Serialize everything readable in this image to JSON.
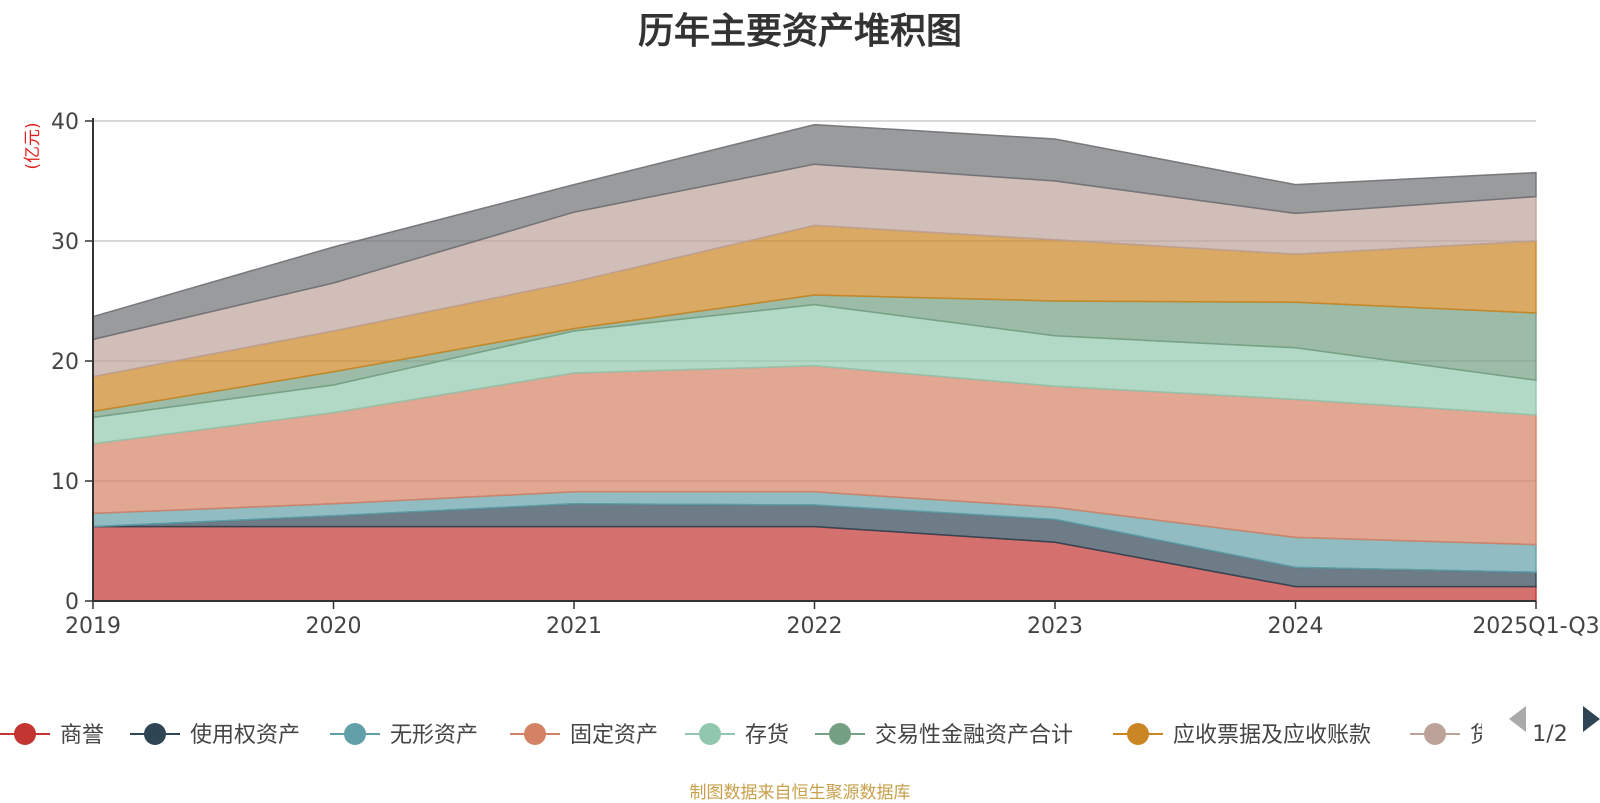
{
  "chart_data": {
    "type": "area",
    "stacked": true,
    "title": "历年主要资产堆积图",
    "ylabel": "(亿元)",
    "x": [
      "2019",
      "2020",
      "2021",
      "2022",
      "2023",
      "2024",
      "2025Q1-Q3"
    ],
    "ylim": [
      0,
      40
    ],
    "yticks": [
      0,
      10,
      20,
      30,
      40
    ],
    "grid": true,
    "legend_position": "bottom",
    "series": [
      {
        "name": "商誉",
        "color": "#c23531",
        "values": [
          6.2,
          6.2,
          6.2,
          6.2,
          4.9,
          1.2,
          1.2
        ]
      },
      {
        "name": "使用权资产",
        "color": "#2f4554",
        "values": [
          0.0,
          0.9,
          1.9,
          1.8,
          1.9,
          1.6,
          1.2
        ]
      },
      {
        "name": "无形资产",
        "color": "#61a0a8",
        "values": [
          1.1,
          1.0,
          1.0,
          1.1,
          1.0,
          2.5,
          2.3
        ]
      },
      {
        "name": "固定资产",
        "color": "#d48265",
        "values": [
          5.8,
          7.6,
          9.9,
          10.5,
          10.1,
          11.5,
          10.8
        ]
      },
      {
        "name": "存货",
        "color": "#91c7ae",
        "values": [
          2.2,
          2.3,
          3.5,
          5.1,
          4.2,
          4.3,
          2.9
        ]
      },
      {
        "name": "交易性金融资产合计",
        "color": "#749f83",
        "values": [
          0.5,
          1.1,
          0.2,
          0.8,
          2.9,
          3.8,
          5.6
        ]
      },
      {
        "name": "应收票据及应收账款",
        "color": "#ca8622",
        "values": [
          2.9,
          3.4,
          3.9,
          5.8,
          5.1,
          4.0,
          6.0
        ]
      },
      {
        "name": "货",
        "color": "#bda29a",
        "values": [
          3.1,
          4.0,
          5.8,
          5.1,
          4.9,
          3.4,
          3.7
        ]
      },
      {
        "name": "",
        "color": "#6e7074",
        "values": [
          1.9,
          3.0,
          2.3,
          3.3,
          3.5,
          2.4,
          2.0
        ]
      }
    ]
  },
  "legend": {
    "items": [
      "商誉",
      "使用权资产",
      "无形资产",
      "固定资产",
      "存货",
      "交易性金融资产合计",
      "应收票据及应收账款",
      "货"
    ],
    "page_indicator": "1/2"
  },
  "source_note": "制图数据来自恒生聚源数据库"
}
